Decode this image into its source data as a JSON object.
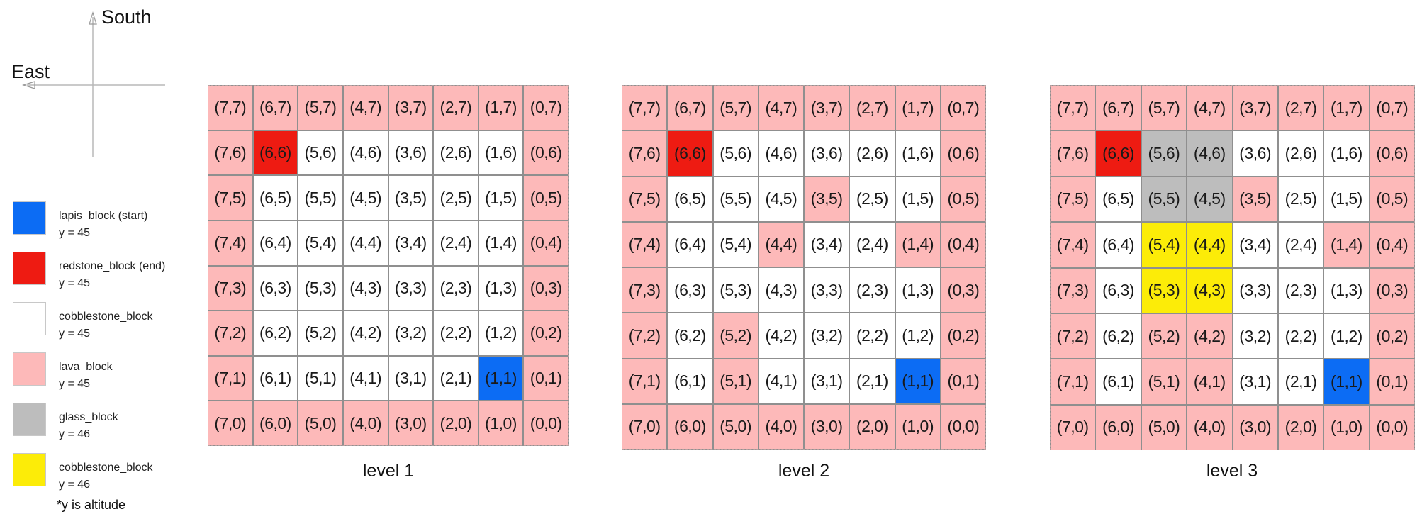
{
  "compass": {
    "south": "South",
    "east": "East"
  },
  "legend": {
    "items": [
      {
        "name": "lapis_block (start)",
        "altitude": "y = 45",
        "color": "#0c6cf4"
      },
      {
        "name": "redstone_block (end)",
        "altitude": "y = 45",
        "color": "#ee1b12"
      },
      {
        "name": "cobblestone_block",
        "altitude": "y = 45",
        "color": "#ffffff"
      },
      {
        "name": "lava_block",
        "altitude": "y = 45",
        "color": "#fdb9b9"
      },
      {
        "name": "glass_block",
        "altitude": "y = 46",
        "color": "#bdbdbd"
      },
      {
        "name": "cobblestone_block",
        "altitude": "y = 46",
        "color": "#fcec08"
      }
    ],
    "note": "*y is altitude"
  },
  "levels": [
    {
      "label": "level 1",
      "rows": [
        [
          "L",
          "L",
          "L",
          "L",
          "L",
          "L",
          "L",
          "L"
        ],
        [
          "L",
          "R",
          "C",
          "C",
          "C",
          "C",
          "C",
          "L"
        ],
        [
          "L",
          "C",
          "C",
          "C",
          "C",
          "C",
          "C",
          "L"
        ],
        [
          "L",
          "C",
          "C",
          "C",
          "C",
          "C",
          "C",
          "L"
        ],
        [
          "L",
          "C",
          "C",
          "C",
          "C",
          "C",
          "C",
          "L"
        ],
        [
          "L",
          "C",
          "C",
          "C",
          "C",
          "C",
          "C",
          "L"
        ],
        [
          "L",
          "C",
          "C",
          "C",
          "C",
          "C",
          "B",
          "L"
        ],
        [
          "L",
          "L",
          "L",
          "L",
          "L",
          "L",
          "L",
          "L"
        ]
      ]
    },
    {
      "label": "level 2",
      "rows": [
        [
          "L",
          "L",
          "L",
          "L",
          "L",
          "L",
          "L",
          "L"
        ],
        [
          "L",
          "R",
          "C",
          "C",
          "C",
          "C",
          "C",
          "L"
        ],
        [
          "L",
          "C",
          "C",
          "C",
          "L",
          "C",
          "C",
          "L"
        ],
        [
          "L",
          "C",
          "C",
          "L",
          "C",
          "C",
          "L",
          "L"
        ],
        [
          "L",
          "C",
          "C",
          "C",
          "C",
          "C",
          "C",
          "L"
        ],
        [
          "L",
          "C",
          "L",
          "C",
          "C",
          "C",
          "C",
          "L"
        ],
        [
          "L",
          "C",
          "L",
          "C",
          "C",
          "C",
          "B",
          "L"
        ],
        [
          "L",
          "L",
          "L",
          "L",
          "L",
          "L",
          "L",
          "L"
        ]
      ]
    },
    {
      "label": "level 3",
      "rows": [
        [
          "L",
          "L",
          "L",
          "L",
          "L",
          "L",
          "L",
          "L"
        ],
        [
          "L",
          "R",
          "G",
          "G",
          "C",
          "C",
          "C",
          "L"
        ],
        [
          "L",
          "C",
          "G",
          "G",
          "L",
          "C",
          "C",
          "L"
        ],
        [
          "L",
          "C",
          "Y",
          "Y",
          "C",
          "C",
          "L",
          "L"
        ],
        [
          "L",
          "C",
          "Y",
          "Y",
          "C",
          "C",
          "C",
          "L"
        ],
        [
          "L",
          "C",
          "L",
          "L",
          "C",
          "C",
          "C",
          "L"
        ],
        [
          "L",
          "C",
          "L",
          "L",
          "C",
          "C",
          "B",
          "L"
        ],
        [
          "L",
          "L",
          "L",
          "L",
          "L",
          "L",
          "L",
          "L"
        ]
      ]
    }
  ]
}
